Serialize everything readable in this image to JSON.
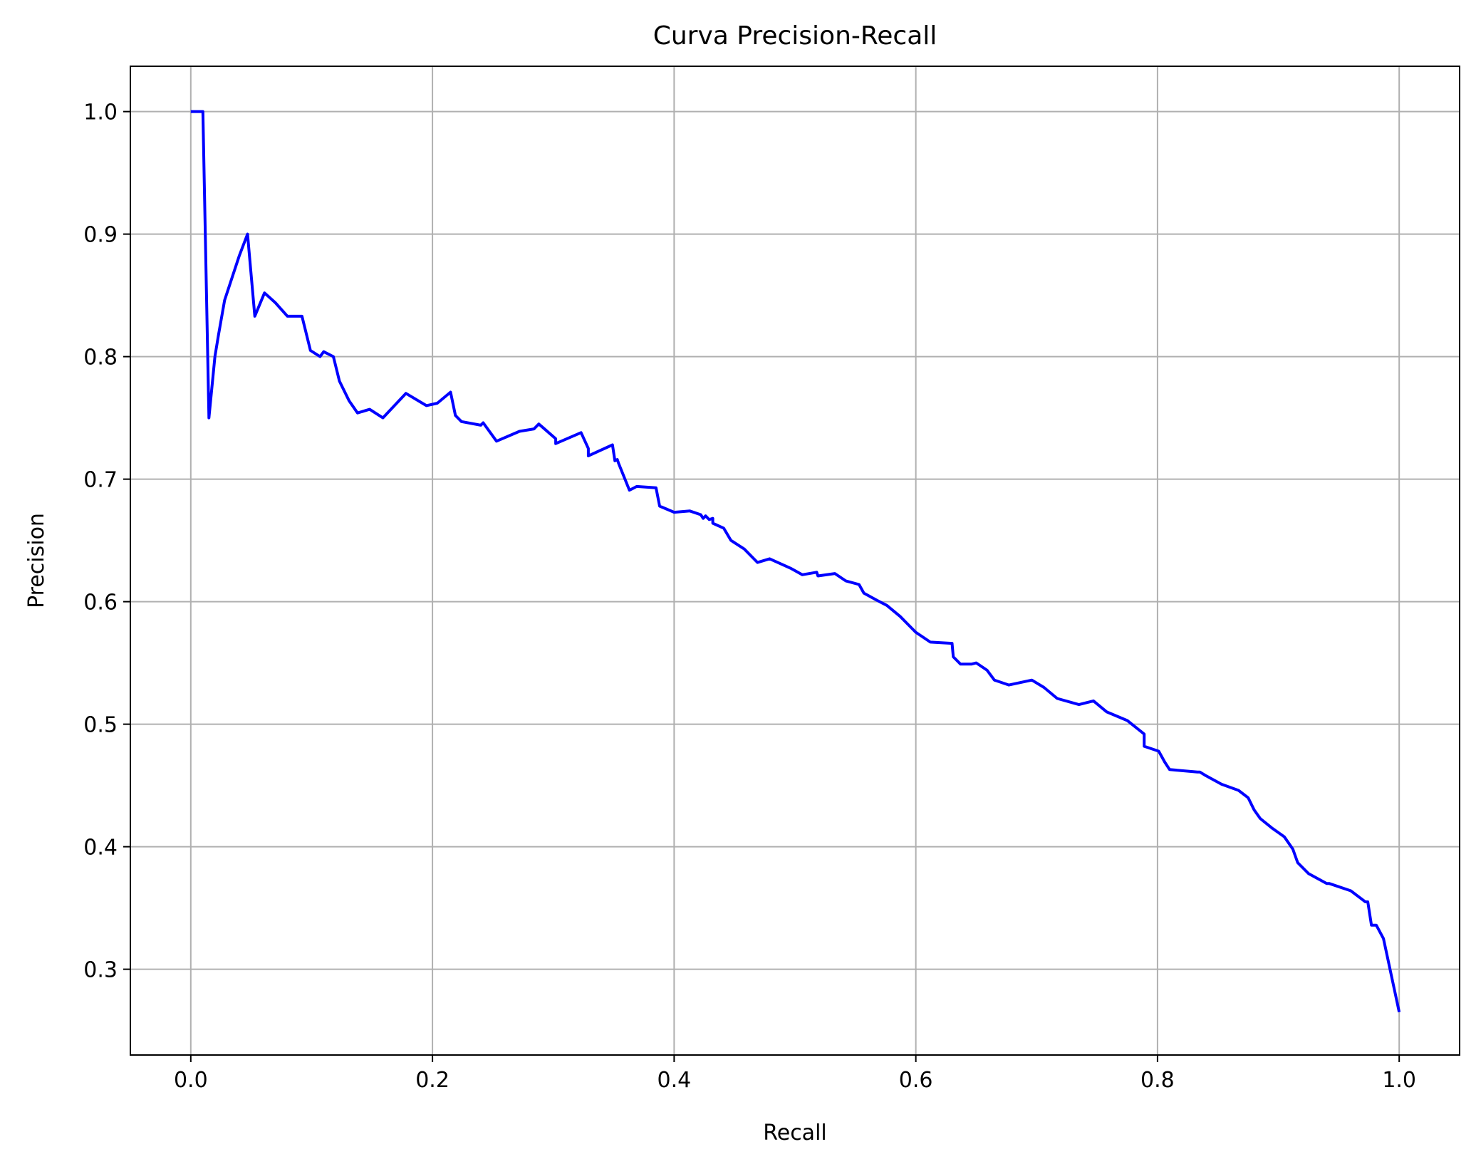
{
  "chart_data": {
    "type": "line",
    "title": "Curva Precision-Recall",
    "xlabel": "Recall",
    "ylabel": "Precision",
    "xlim": [
      -0.05,
      1.05
    ],
    "ylim": [
      0.23,
      1.037
    ],
    "grid": true,
    "colors": {
      "line": "#0000ff",
      "grid": "#b0b0b0",
      "axes": "#000000"
    },
    "xticks": [
      0.0,
      0.2,
      0.4,
      0.6,
      0.8,
      1.0
    ],
    "xtick_labels": [
      "0.0",
      "0.2",
      "0.4",
      "0.6",
      "0.8",
      "1.0"
    ],
    "yticks": [
      0.3,
      0.4,
      0.5,
      0.6,
      0.7,
      0.8,
      0.9,
      1.0
    ],
    "ytick_labels": [
      "0.3",
      "0.4",
      "0.5",
      "0.6",
      "0.7",
      "0.8",
      "0.9",
      "1.0"
    ],
    "series": [
      {
        "x": [
          0.0,
          0.01,
          0.015,
          0.02,
          0.023,
          0.028,
          0.035,
          0.04,
          0.047,
          0.053,
          0.061,
          0.07,
          0.08,
          0.092,
          0.099,
          0.107,
          0.11,
          0.118,
          0.123,
          0.131,
          0.138,
          0.148,
          0.159,
          0.178,
          0.195,
          0.204,
          0.215,
          0.219,
          0.224,
          0.24,
          0.242,
          0.253,
          0.272,
          0.284,
          0.288,
          0.302,
          0.302,
          0.323,
          0.329,
          0.329,
          0.349,
          0.351,
          0.353,
          0.354,
          0.363,
          0.369,
          0.385,
          0.388,
          0.4,
          0.413,
          0.422,
          0.424,
          0.426,
          0.429,
          0.432,
          0.432,
          0.441,
          0.447,
          0.458,
          0.469,
          0.479,
          0.497,
          0.506,
          0.518,
          0.519,
          0.533,
          0.542,
          0.553,
          0.557,
          0.568,
          0.576,
          0.587,
          0.6,
          0.612,
          0.63,
          0.631,
          0.637,
          0.646,
          0.65,
          0.659,
          0.665,
          0.677,
          0.696,
          0.706,
          0.717,
          0.735,
          0.747,
          0.758,
          0.775,
          0.789,
          0.789,
          0.801,
          0.806,
          0.81,
          0.833,
          0.835,
          0.84,
          0.853,
          0.867,
          0.875,
          0.88,
          0.885,
          0.895,
          0.905,
          0.912,
          0.916,
          0.925,
          0.94,
          0.942,
          0.96,
          0.968,
          0.972,
          0.974,
          0.977,
          0.981,
          0.987,
          1.0
        ],
        "y": [
          1.0,
          1.0,
          0.75,
          0.8,
          0.818,
          0.846,
          0.867,
          0.882,
          0.9,
          0.833,
          0.852,
          0.844,
          0.833,
          0.833,
          0.805,
          0.8,
          0.804,
          0.8,
          0.78,
          0.764,
          0.754,
          0.757,
          0.75,
          0.77,
          0.76,
          0.762,
          0.771,
          0.752,
          0.747,
          0.744,
          0.746,
          0.731,
          0.739,
          0.741,
          0.745,
          0.733,
          0.729,
          0.738,
          0.725,
          0.719,
          0.728,
          0.715,
          0.716,
          0.713,
          0.691,
          0.694,
          0.693,
          0.678,
          0.673,
          0.674,
          0.671,
          0.668,
          0.67,
          0.667,
          0.668,
          0.664,
          0.66,
          0.65,
          0.643,
          0.632,
          0.635,
          0.627,
          0.622,
          0.624,
          0.621,
          0.623,
          0.617,
          0.614,
          0.607,
          0.601,
          0.597,
          0.588,
          0.575,
          0.567,
          0.566,
          0.555,
          0.549,
          0.549,
          0.55,
          0.544,
          0.536,
          0.532,
          0.536,
          0.53,
          0.521,
          0.516,
          0.519,
          0.51,
          0.503,
          0.492,
          0.482,
          0.478,
          0.469,
          0.463,
          0.461,
          0.461,
          0.458,
          0.451,
          0.446,
          0.44,
          0.43,
          0.423,
          0.415,
          0.408,
          0.398,
          0.387,
          0.378,
          0.37,
          0.37,
          0.364,
          0.358,
          0.355,
          0.355,
          0.336,
          0.336,
          0.325,
          0.265
        ]
      }
    ]
  }
}
